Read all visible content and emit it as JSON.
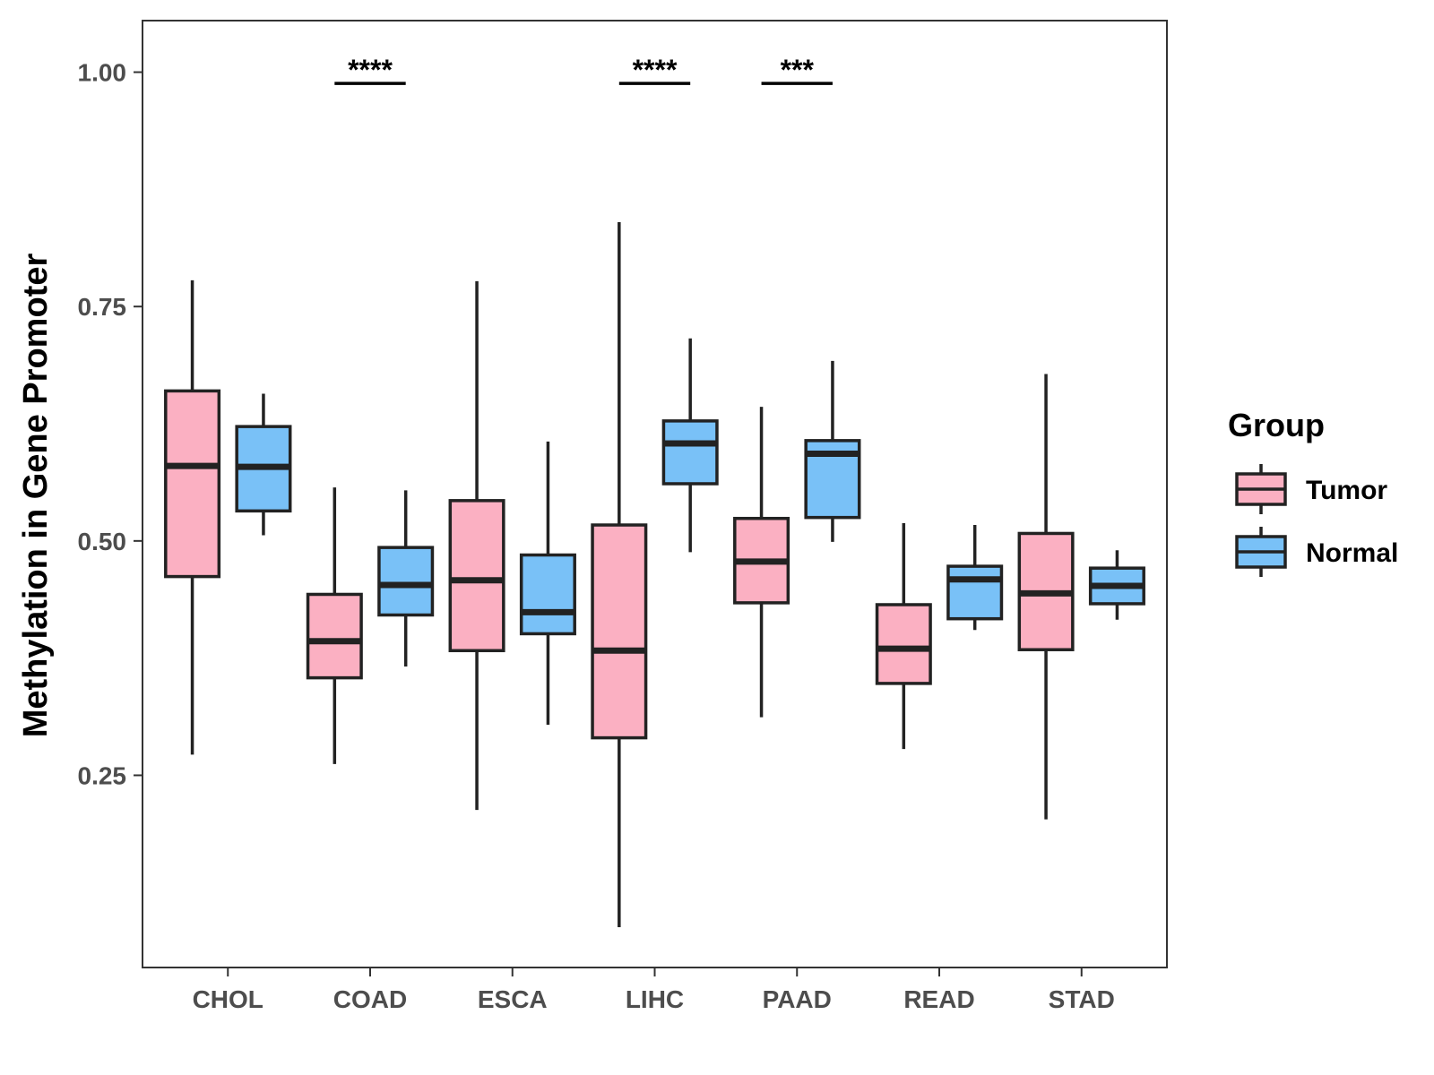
{
  "chart_data": {
    "type": "boxplot",
    "title": "",
    "xlabel": "",
    "ylabel": "Methylation in Gene Promoter",
    "ylim": [
      0.045,
      1.055
    ],
    "yticks": [
      0.25,
      0.5,
      0.75,
      1.0
    ],
    "ytick_labels": [
      "0.25",
      "0.50",
      "0.75",
      "1.00"
    ],
    "categories": [
      "CHOL",
      "COAD",
      "ESCA",
      "LIHC",
      "PAAD",
      "READ",
      "STAD"
    ],
    "legend": {
      "title": "Group",
      "position": "right",
      "entries": [
        {
          "name": "Tumor",
          "color": "#fbb0c2"
        },
        {
          "name": "Normal",
          "color": "#79c1f7"
        }
      ]
    },
    "series": [
      {
        "name": "Tumor",
        "color": "#fbb0c2",
        "boxes": [
          {
            "category": "CHOL",
            "min": 0.272,
            "q1": 0.462,
            "median": 0.58,
            "q3": 0.66,
            "max": 0.778
          },
          {
            "category": "COAD",
            "min": 0.262,
            "q1": 0.354,
            "median": 0.393,
            "q3": 0.443,
            "max": 0.557
          },
          {
            "category": "ESCA",
            "min": 0.213,
            "q1": 0.383,
            "median": 0.458,
            "q3": 0.543,
            "max": 0.777
          },
          {
            "category": "LIHC",
            "min": 0.088,
            "q1": 0.29,
            "median": 0.383,
            "q3": 0.517,
            "max": 0.84
          },
          {
            "category": "PAAD",
            "min": 0.312,
            "q1": 0.434,
            "median": 0.478,
            "q3": 0.524,
            "max": 0.643
          },
          {
            "category": "READ",
            "min": 0.278,
            "q1": 0.348,
            "median": 0.385,
            "q3": 0.432,
            "max": 0.519
          },
          {
            "category": "STAD",
            "min": 0.203,
            "q1": 0.384,
            "median": 0.444,
            "q3": 0.508,
            "max": 0.678
          }
        ]
      },
      {
        "name": "Normal",
        "color": "#79c1f7",
        "boxes": [
          {
            "category": "CHOL",
            "min": 0.506,
            "q1": 0.532,
            "median": 0.579,
            "q3": 0.622,
            "max": 0.657
          },
          {
            "category": "COAD",
            "min": 0.366,
            "q1": 0.421,
            "median": 0.453,
            "q3": 0.493,
            "max": 0.554
          },
          {
            "category": "ESCA",
            "min": 0.304,
            "q1": 0.401,
            "median": 0.424,
            "q3": 0.485,
            "max": 0.606
          },
          {
            "category": "LIHC",
            "min": 0.488,
            "q1": 0.561,
            "median": 0.604,
            "q3": 0.628,
            "max": 0.716
          },
          {
            "category": "PAAD",
            "min": 0.499,
            "q1": 0.525,
            "median": 0.593,
            "q3": 0.607,
            "max": 0.692
          },
          {
            "category": "READ",
            "min": 0.405,
            "q1": 0.417,
            "median": 0.459,
            "q3": 0.473,
            "max": 0.517
          },
          {
            "category": "STAD",
            "min": 0.416,
            "q1": 0.433,
            "median": 0.452,
            "q3": 0.471,
            "max": 0.49
          }
        ]
      }
    ],
    "significance": [
      {
        "category": "COAD",
        "label": "****",
        "y": 0.988
      },
      {
        "category": "LIHC",
        "label": "****",
        "y": 0.988
      },
      {
        "category": "PAAD",
        "label": "***",
        "y": 0.988
      }
    ]
  }
}
